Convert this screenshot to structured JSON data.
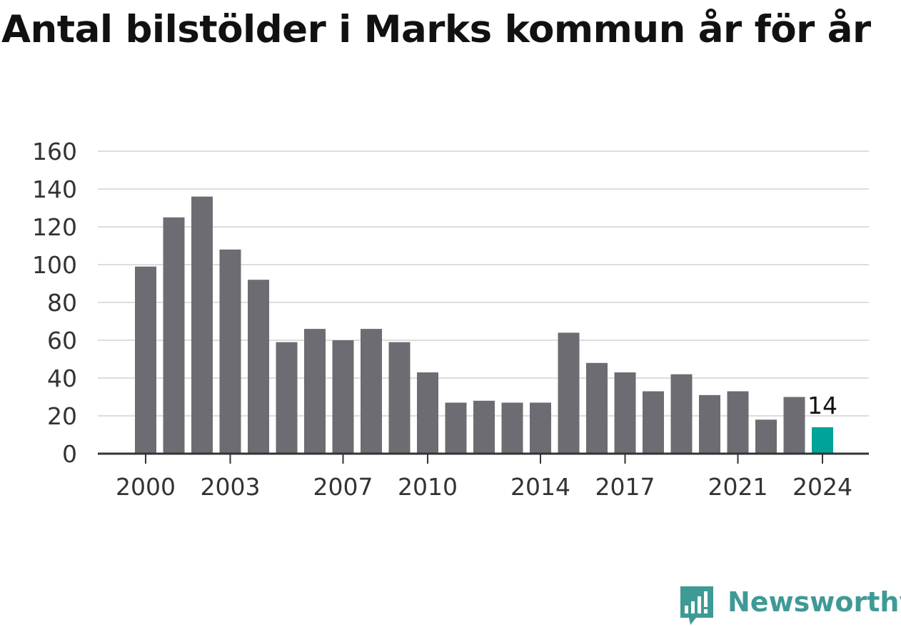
{
  "title": "Antal bilstölder i Marks kommun år för år",
  "brand": {
    "name": "Newsworthy",
    "color": "#3f9a96",
    "icon": "newsworthy-chart-bubble-icon"
  },
  "chart_data": {
    "type": "bar",
    "title": "Antal bilstölder i Marks kommun år för år",
    "xlabel": "",
    "ylabel": "",
    "ylim": [
      0,
      160
    ],
    "yticks": [
      0,
      20,
      40,
      60,
      80,
      100,
      120,
      140,
      160
    ],
    "grid": true,
    "legend": "none",
    "categories": [
      2000,
      2001,
      2002,
      2003,
      2004,
      2005,
      2006,
      2007,
      2008,
      2009,
      2010,
      2011,
      2012,
      2013,
      2014,
      2015,
      2016,
      2017,
      2018,
      2019,
      2020,
      2021,
      2022,
      2023,
      2024
    ],
    "xtick_labels": [
      "2000",
      "2003",
      "2007",
      "2010",
      "2014",
      "2017",
      "2021",
      "2024"
    ],
    "values": [
      99,
      125,
      136,
      108,
      92,
      59,
      66,
      60,
      66,
      59,
      43,
      27,
      28,
      27,
      27,
      64,
      48,
      43,
      33,
      42,
      31,
      33,
      18,
      30,
      14
    ],
    "highlight": {
      "category": 2024,
      "label": "14"
    },
    "colors": {
      "bar": "#6d6c72",
      "highlight": "#00a39a",
      "grid": "#dddddd",
      "axis": "#333333",
      "text": "#333333"
    }
  }
}
